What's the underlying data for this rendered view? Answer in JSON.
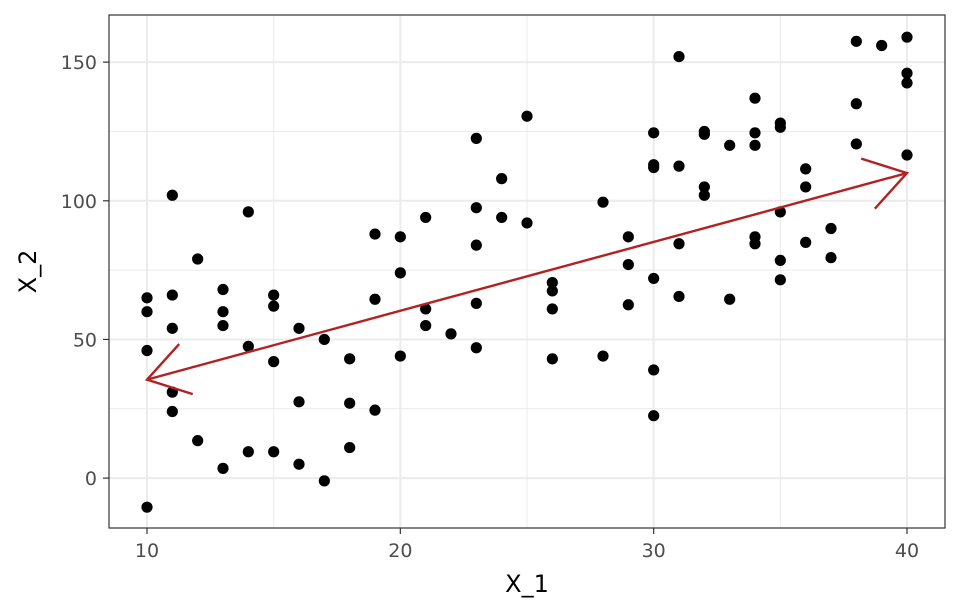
{
  "chart_data": {
    "type": "scatter",
    "title": "",
    "xlabel": "X_1",
    "ylabel": "X_2",
    "xlim": [
      8.5,
      41.5
    ],
    "ylim": [
      -18,
      167
    ],
    "x_ticks": [
      10,
      20,
      30,
      40
    ],
    "y_ticks": [
      0,
      50,
      100,
      150
    ],
    "x_minor_ticks": [
      15,
      25,
      35
    ],
    "y_minor_ticks": [
      25,
      75,
      125
    ],
    "grid": true,
    "legend": "none",
    "colors": {
      "points": "#000000",
      "arrow": "#b22222",
      "grid": "#ebebeb",
      "panel_border": "#333333"
    },
    "points": [
      {
        "x": 10,
        "y": 65
      },
      {
        "x": 10,
        "y": 60
      },
      {
        "x": 10,
        "y": 46
      },
      {
        "x": 10,
        "y": -10.5
      },
      {
        "x": 11,
        "y": 102
      },
      {
        "x": 11,
        "y": 66
      },
      {
        "x": 11,
        "y": 54
      },
      {
        "x": 11,
        "y": 31
      },
      {
        "x": 11,
        "y": 24
      },
      {
        "x": 12,
        "y": 79
      },
      {
        "x": 12,
        "y": 13.5
      },
      {
        "x": 13,
        "y": 68
      },
      {
        "x": 13,
        "y": 60
      },
      {
        "x": 13,
        "y": 55
      },
      {
        "x": 13,
        "y": 3.5
      },
      {
        "x": 14,
        "y": 96
      },
      {
        "x": 14,
        "y": 47.5
      },
      {
        "x": 14,
        "y": 9.5
      },
      {
        "x": 15,
        "y": 66
      },
      {
        "x": 15,
        "y": 62
      },
      {
        "x": 15,
        "y": 42
      },
      {
        "x": 15,
        "y": 9.5
      },
      {
        "x": 16,
        "y": 54
      },
      {
        "x": 16,
        "y": 27.5
      },
      {
        "x": 16,
        "y": 5
      },
      {
        "x": 17,
        "y": 50
      },
      {
        "x": 17,
        "y": -1
      },
      {
        "x": 18,
        "y": 43
      },
      {
        "x": 18,
        "y": 27
      },
      {
        "x": 18,
        "y": 11
      },
      {
        "x": 19,
        "y": 88
      },
      {
        "x": 19,
        "y": 64.5
      },
      {
        "x": 19,
        "y": 24.5
      },
      {
        "x": 20,
        "y": 87
      },
      {
        "x": 20,
        "y": 74
      },
      {
        "x": 20,
        "y": 44
      },
      {
        "x": 21,
        "y": 94
      },
      {
        "x": 21,
        "y": 61
      },
      {
        "x": 21,
        "y": 55
      },
      {
        "x": 22,
        "y": 52
      },
      {
        "x": 23,
        "y": 122.5
      },
      {
        "x": 23,
        "y": 97.5
      },
      {
        "x": 23,
        "y": 84
      },
      {
        "x": 23,
        "y": 63
      },
      {
        "x": 23,
        "y": 47
      },
      {
        "x": 24,
        "y": 108
      },
      {
        "x": 24,
        "y": 94
      },
      {
        "x": 25,
        "y": 130.5
      },
      {
        "x": 25,
        "y": 92
      },
      {
        "x": 26,
        "y": 70.5
      },
      {
        "x": 26,
        "y": 67.5
      },
      {
        "x": 26,
        "y": 61
      },
      {
        "x": 26,
        "y": 43
      },
      {
        "x": 28,
        "y": 99.5
      },
      {
        "x": 28,
        "y": 44
      },
      {
        "x": 29,
        "y": 87
      },
      {
        "x": 29,
        "y": 77
      },
      {
        "x": 29,
        "y": 62.5
      },
      {
        "x": 30,
        "y": 124.5
      },
      {
        "x": 30,
        "y": 113
      },
      {
        "x": 30,
        "y": 112
      },
      {
        "x": 30,
        "y": 72
      },
      {
        "x": 30,
        "y": 39
      },
      {
        "x": 30,
        "y": 22.5
      },
      {
        "x": 31,
        "y": 152
      },
      {
        "x": 31,
        "y": 112.5
      },
      {
        "x": 31,
        "y": 84.5
      },
      {
        "x": 31,
        "y": 65.5
      },
      {
        "x": 32,
        "y": 125
      },
      {
        "x": 32,
        "y": 124
      },
      {
        "x": 32,
        "y": 105
      },
      {
        "x": 32,
        "y": 102
      },
      {
        "x": 33,
        "y": 120
      },
      {
        "x": 33,
        "y": 64.5
      },
      {
        "x": 34,
        "y": 137
      },
      {
        "x": 34,
        "y": 124.5
      },
      {
        "x": 34,
        "y": 120
      },
      {
        "x": 34,
        "y": 87
      },
      {
        "x": 34,
        "y": 84.5
      },
      {
        "x": 35,
        "y": 128
      },
      {
        "x": 35,
        "y": 126.5
      },
      {
        "x": 35,
        "y": 96
      },
      {
        "x": 35,
        "y": 78.5
      },
      {
        "x": 35,
        "y": 71.5
      },
      {
        "x": 36,
        "y": 111.5
      },
      {
        "x": 36,
        "y": 105
      },
      {
        "x": 36,
        "y": 85
      },
      {
        "x": 37,
        "y": 90
      },
      {
        "x": 37,
        "y": 79.5
      },
      {
        "x": 38,
        "y": 157.5
      },
      {
        "x": 38,
        "y": 135
      },
      {
        "x": 38,
        "y": 120.5
      },
      {
        "x": 39,
        "y": 156
      },
      {
        "x": 40,
        "y": 159
      },
      {
        "x": 40,
        "y": 146
      },
      {
        "x": 40,
        "y": 142.5
      },
      {
        "x": 40,
        "y": 116.5
      }
    ],
    "arrow": {
      "from": {
        "x": 24.5,
        "y": 72.5
      },
      "tail_end": {
        "x": 10,
        "y": 35.5
      },
      "head_end": {
        "x": 40,
        "y": 110
      },
      "double_headed": true
    }
  }
}
